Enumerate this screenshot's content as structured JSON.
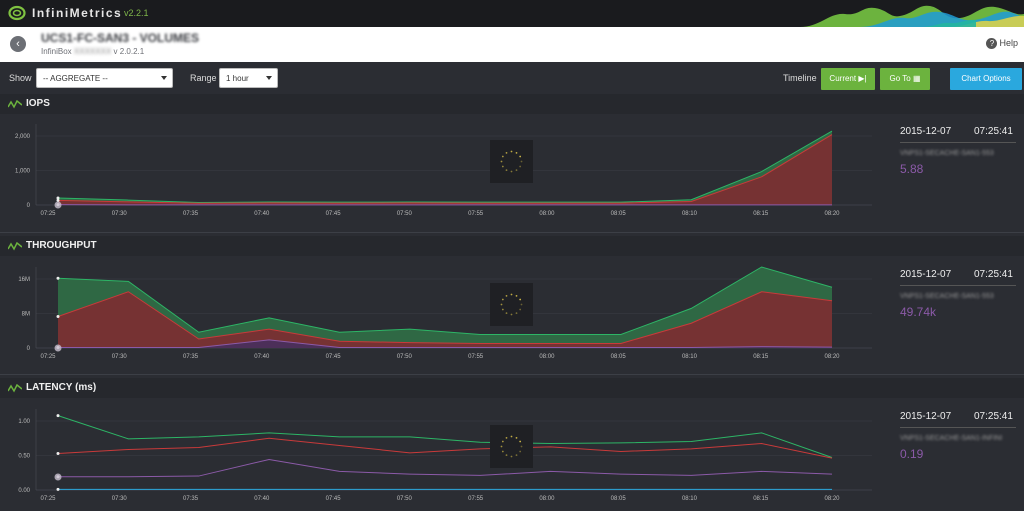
{
  "app": {
    "brand": "InfiniMetrics",
    "version": "v2.2.1"
  },
  "header": {
    "title": "UCS1-FC-SAN3 - VOLUMES",
    "product": "InfiniBox",
    "product_name": "XXXXXXX",
    "product_version": "v 2.0.2.1",
    "help_label": "Help"
  },
  "toolbar": {
    "show_label": "Show",
    "show_value": "-- AGGREGATE --",
    "range_label": "Range",
    "range_value": "1 hour",
    "timeline_label": "Timeline",
    "current_label": "Current",
    "goto_label": "Go To",
    "chart_options_label": "Chart Options"
  },
  "colors": {
    "accent_green": "#6cb33e",
    "accent_blue": "#2aa8de",
    "series_purple": "#8b5aa8",
    "read_green": "#2db566",
    "write_red": "#c93a3a"
  },
  "panels": [
    {
      "title": "IOPS",
      "date": "2015-12-07",
      "time": "07:25:41",
      "series_name": "VNPS1-SECACHE-SAN1-553",
      "value": "5.88"
    },
    {
      "title": "THROUGHPUT",
      "date": "2015-12-07",
      "time": "07:25:41",
      "series_name": "VNPS1-SECACHE-SAN1-553",
      "value": "49.74k"
    },
    {
      "title": "LATENCY (ms)",
      "date": "2015-12-07",
      "time": "07:25:41",
      "series_name": "VNPS1-SECACHE-SAN1-INFINI",
      "value": "0.19"
    }
  ],
  "chart_data": [
    {
      "type": "area",
      "title": "IOPS",
      "categories": [
        "07:25",
        "07:30",
        "07:35",
        "07:40",
        "07:45",
        "07:50",
        "07:55",
        "08:00",
        "08:05",
        "08:10",
        "08:15",
        "08:20"
      ],
      "y_ticks": [
        "2,000",
        "1,000",
        "0"
      ],
      "ylim": [
        0,
        2300
      ],
      "series": [
        {
          "values": [
            200,
            140,
            70,
            85,
            80,
            85,
            80,
            80,
            80,
            150,
            950,
            2100
          ]
        },
        {
          "values": [
            130,
            90,
            50,
            60,
            55,
            60,
            55,
            55,
            55,
            100,
            800,
            2000
          ]
        },
        {
          "values": [
            10,
            5,
            5,
            5,
            5,
            5,
            5,
            5,
            5,
            5,
            5,
            5
          ]
        }
      ]
    },
    {
      "type": "area",
      "title": "THROUGHPUT",
      "categories": [
        "07:25",
        "07:30",
        "07:35",
        "07:40",
        "07:45",
        "07:50",
        "07:55",
        "08:00",
        "08:05",
        "08:10",
        "08:15",
        "08:20"
      ],
      "y_ticks": [
        "16M",
        "8M",
        "0"
      ],
      "ylim": [
        0,
        18000000
      ],
      "series": [
        {
          "values": [
            15500000,
            14800000,
            3500000,
            6700000,
            3500000,
            4200000,
            3000000,
            3000000,
            3000000,
            8800000,
            18000000,
            13500000
          ]
        },
        {
          "values": [
            7000000,
            12500000,
            2000000,
            4200000,
            1500000,
            1200000,
            1000000,
            1000000,
            1000000,
            5500000,
            12500000,
            10500000
          ]
        },
        {
          "values": [
            100000,
            100000,
            100000,
            1800000,
            100000,
            100000,
            100000,
            100000,
            100000,
            100000,
            300000,
            200000
          ]
        }
      ]
    },
    {
      "type": "line",
      "title": "LATENCY (ms)",
      "categories": [
        "07:25",
        "07:30",
        "07:35",
        "07:40",
        "07:45",
        "07:50",
        "07:55",
        "08:00",
        "08:05",
        "08:10",
        "08:15",
        "08:20"
      ],
      "y_ticks": [
        "1.00",
        "0.50",
        "0.00"
      ],
      "ylim": [
        0,
        1.22
      ],
      "series": [
        {
          "values": [
            1.12,
            0.77,
            0.8,
            0.86,
            0.8,
            0.8,
            0.72,
            0.7,
            0.71,
            0.73,
            0.86,
            0.49
          ]
        },
        {
          "values": [
            0.55,
            0.61,
            0.64,
            0.78,
            0.67,
            0.56,
            0.62,
            0.65,
            0.58,
            0.62,
            0.7,
            0.48
          ]
        },
        {
          "values": [
            0.2,
            0.2,
            0.21,
            0.46,
            0.28,
            0.24,
            0.22,
            0.28,
            0.24,
            0.22,
            0.28,
            0.24
          ]
        },
        {
          "values": [
            0.01,
            0.01,
            0.01,
            0.01,
            0.01,
            0.01,
            0.01,
            0.01,
            0.01,
            0.01,
            0.01,
            0.01
          ]
        }
      ]
    }
  ]
}
